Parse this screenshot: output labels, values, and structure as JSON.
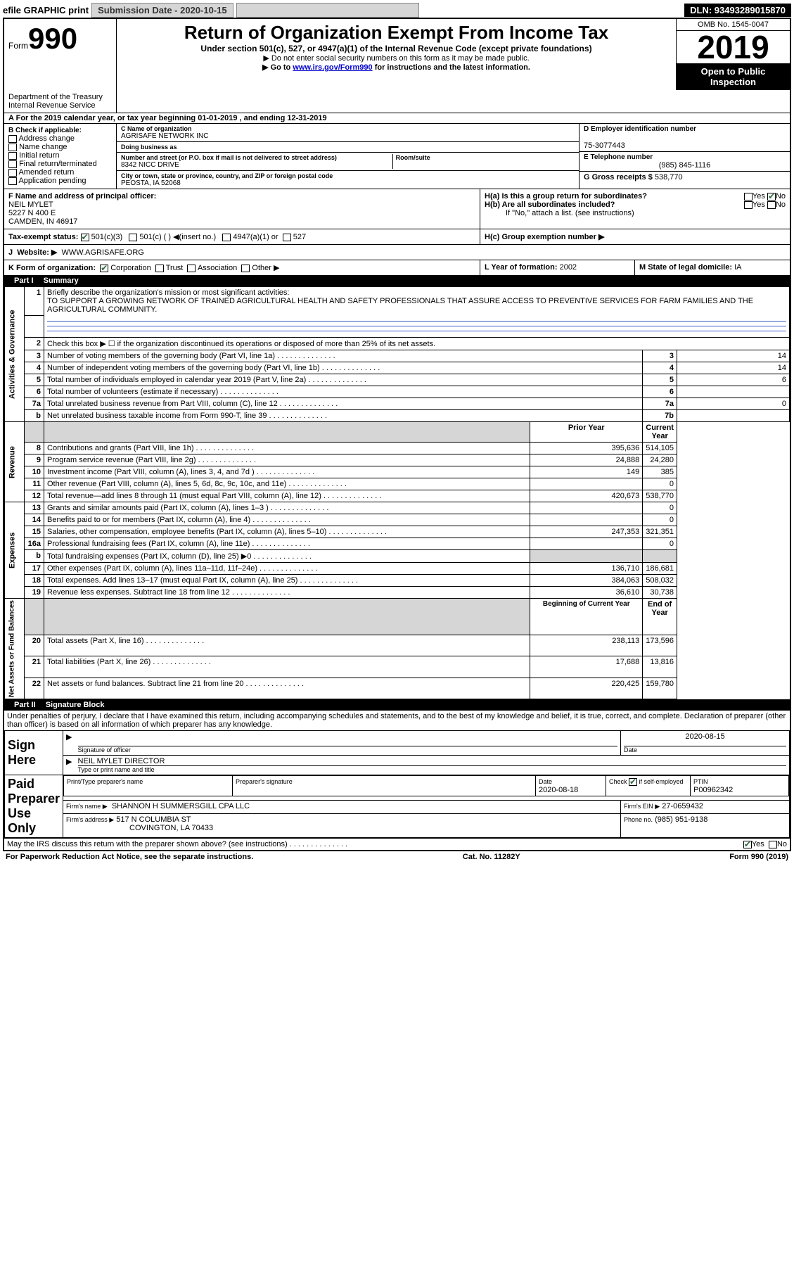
{
  "topbar": {
    "efile": "efile GRAPHIC print",
    "subdate_lbl": "Submission Date - 2020-10-15",
    "dln": "DLN: 93493289015870"
  },
  "header": {
    "form_word": "Form",
    "form_num": "990",
    "title": "Return of Organization Exempt From Income Tax",
    "sub": "Under section 501(c), 527, or 4947(a)(1) of the Internal Revenue Code (except private foundations)",
    "note1": "▶ Do not enter social security numbers on this form as it may be made public.",
    "note2_a": "▶ Go to ",
    "note2_link": "www.irs.gov/Form990",
    "note2_b": " for instructions and the latest information.",
    "omb": "OMB No. 1545-0047",
    "year": "2019",
    "open": "Open to Public Inspection",
    "dept": "Department of the Treasury\nInternal Revenue Service"
  },
  "periodA": "For the 2019 calendar year, or tax year beginning 01-01-2019    , and ending 12-31-2019",
  "B": {
    "hd": "B Check if applicable:",
    "opts": [
      "Address change",
      "Name change",
      "Initial return",
      "Final return/terminated",
      "Amended return",
      "Application pending"
    ]
  },
  "C": {
    "name_lbl": "C Name of organization",
    "name": "AGRISAFE NETWORK INC",
    "dba_lbl": "Doing business as",
    "addr_lbl": "Number and street (or P.O. box if mail is not delivered to street address)",
    "room_lbl": "Room/suite",
    "addr": "8342 NICC DRIVE",
    "city_lbl": "City or town, state or province, country, and ZIP or foreign postal code",
    "city": "PEOSTA, IA  52068"
  },
  "D": {
    "lbl": "D Employer identification number",
    "val": "75-3077443"
  },
  "E": {
    "lbl": "E Telephone number",
    "val": "(985) 845-1116"
  },
  "G": {
    "lbl": "G Gross receipts $",
    "val": "538,770"
  },
  "F": {
    "lbl": "F  Name and address of principal officer:",
    "name": "NEIL MYLET",
    "addr1": "5227 N 400 E",
    "addr2": "CAMDEN, IN  46917"
  },
  "H": {
    "a": "H(a)  Is this a group return for subordinates?",
    "b": "H(b)  Are all subordinates included?",
    "bnote": "If \"No,\" attach a list. (see instructions)",
    "c": "H(c)  Group exemption number ▶"
  },
  "I": {
    "lbl": "Tax-exempt status:",
    "o1": "501(c)(3)",
    "o2": "501(c) (  ) ◀(insert no.)",
    "o3": "4947(a)(1) or",
    "o4": "527"
  },
  "J": {
    "lbl": "Website: ▶",
    "val": "WWW.AGRISAFE.ORG"
  },
  "K": {
    "lbl": "K Form of organization:",
    "opts": [
      "Corporation",
      "Trust",
      "Association",
      "Other ▶"
    ]
  },
  "L": {
    "lbl": "L Year of formation:",
    "val": "2002"
  },
  "M": {
    "lbl": "M State of legal domicile:",
    "val": "IA"
  },
  "part1": {
    "tag": "Part I",
    "title": "Summary"
  },
  "summary": {
    "q1": "Briefly describe the organization's mission or most significant activities:",
    "mission": "TO SUPPORT A GROWING NETWORK OF TRAINED AGRICULTURAL HEALTH AND SAFETY PROFESSIONALS THAT ASSURE ACCESS TO PREVENTIVE SERVICES FOR FARM FAMILIES AND THE AGRICULTURAL COMMUNITY.",
    "q2": "Check this box ▶ ☐  if the organization discontinued its operations or disposed of more than 25% of its net assets.",
    "rows_ag": [
      {
        "n": "3",
        "t": "Number of voting members of the governing body (Part VI, line 1a)",
        "box": "3",
        "v": "14"
      },
      {
        "n": "4",
        "t": "Number of independent voting members of the governing body (Part VI, line 1b)",
        "box": "4",
        "v": "14"
      },
      {
        "n": "5",
        "t": "Total number of individuals employed in calendar year 2019 (Part V, line 2a)",
        "box": "5",
        "v": "6"
      },
      {
        "n": "6",
        "t": "Total number of volunteers (estimate if necessary)",
        "box": "6",
        "v": ""
      },
      {
        "n": "7a",
        "t": "Total unrelated business revenue from Part VIII, column (C), line 12",
        "box": "7a",
        "v": "0"
      },
      {
        "n": "b",
        "t": "Net unrelated business taxable income from Form 990-T, line 39",
        "box": "7b",
        "v": ""
      }
    ],
    "col_prior": "Prior Year",
    "col_curr": "Current Year",
    "rev": [
      {
        "n": "8",
        "t": "Contributions and grants (Part VIII, line 1h)",
        "p": "395,636",
        "c": "514,105"
      },
      {
        "n": "9",
        "t": "Program service revenue (Part VIII, line 2g)",
        "p": "24,888",
        "c": "24,280"
      },
      {
        "n": "10",
        "t": "Investment income (Part VIII, column (A), lines 3, 4, and 7d )",
        "p": "149",
        "c": "385"
      },
      {
        "n": "11",
        "t": "Other revenue (Part VIII, column (A), lines 5, 6d, 8c, 9c, 10c, and 11e)",
        "p": "",
        "c": "0"
      },
      {
        "n": "12",
        "t": "Total revenue—add lines 8 through 11 (must equal Part VIII, column (A), line 12)",
        "p": "420,673",
        "c": "538,770"
      }
    ],
    "exp": [
      {
        "n": "13",
        "t": "Grants and similar amounts paid (Part IX, column (A), lines 1–3 )",
        "p": "",
        "c": "0"
      },
      {
        "n": "14",
        "t": "Benefits paid to or for members (Part IX, column (A), line 4)",
        "p": "",
        "c": "0"
      },
      {
        "n": "15",
        "t": "Salaries, other compensation, employee benefits (Part IX, column (A), lines 5–10)",
        "p": "247,353",
        "c": "321,351"
      },
      {
        "n": "16a",
        "t": "Professional fundraising fees (Part IX, column (A), line 11e)",
        "p": "",
        "c": "0"
      },
      {
        "n": "b",
        "t": "Total fundraising expenses (Part IX, column (D), line 25) ▶0",
        "p": "GRAY",
        "c": "GRAY"
      },
      {
        "n": "17",
        "t": "Other expenses (Part IX, column (A), lines 11a–11d, 11f–24e)",
        "p": "136,710",
        "c": "186,681"
      },
      {
        "n": "18",
        "t": "Total expenses. Add lines 13–17 (must equal Part IX, column (A), line 25)",
        "p": "384,063",
        "c": "508,032"
      },
      {
        "n": "19",
        "t": "Revenue less expenses. Subtract line 18 from line 12",
        "p": "36,610",
        "c": "30,738"
      }
    ],
    "col_beg": "Beginning of Current Year",
    "col_end": "End of Year",
    "net": [
      {
        "n": "20",
        "t": "Total assets (Part X, line 16)",
        "p": "238,113",
        "c": "173,596"
      },
      {
        "n": "21",
        "t": "Total liabilities (Part X, line 26)",
        "p": "17,688",
        "c": "13,816"
      },
      {
        "n": "22",
        "t": "Net assets or fund balances. Subtract line 21 from line 20",
        "p": "220,425",
        "c": "159,780"
      }
    ]
  },
  "part2": {
    "tag": "Part II",
    "title": "Signature Block"
  },
  "sig": {
    "decl": "Under penalties of perjury, I declare that I have examined this return, including accompanying schedules and statements, and to the best of my knowledge and belief, it is true, correct, and complete. Declaration of preparer (other than officer) is based on all information of which preparer has any knowledge.",
    "sign_here": "Sign Here",
    "sig_officer": "Signature of officer",
    "date_lbl": "Date",
    "date": "2020-08-15",
    "name_title": "NEIL MYLET  DIRECTOR",
    "name_title_lbl": "Type or print name and title",
    "paid": "Paid Preparer Use Only",
    "prep_name_lbl": "Print/Type preparer's name",
    "prep_sig_lbl": "Preparer's signature",
    "prep_date_lbl": "Date",
    "prep_date": "2020-08-18",
    "check_lbl": "Check ☑ if self-employed",
    "ptin_lbl": "PTIN",
    "ptin": "P00962342",
    "firm_name_lbl": "Firm's name    ▶",
    "firm_name": "SHANNON H SUMMERSGILL CPA LLC",
    "firm_ein_lbl": "Firm's EIN ▶",
    "firm_ein": "27-0659432",
    "firm_addr_lbl": "Firm's address ▶",
    "firm_addr1": "517 N COLUMBIA ST",
    "firm_addr2": "COVINGTON, LA  70433",
    "phone_lbl": "Phone no.",
    "phone": "(985) 951-9138",
    "discuss": "May the IRS discuss this return with the preparer shown above? (see instructions)"
  },
  "footer": {
    "l": "For Paperwork Reduction Act Notice, see the separate instructions.",
    "c": "Cat. No. 11282Y",
    "r": "Form 990 (2019)"
  },
  "labels": {
    "yes": "Yes",
    "no": "No"
  }
}
